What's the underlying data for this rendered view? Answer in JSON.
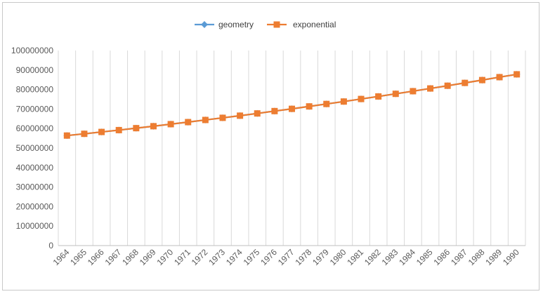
{
  "chart_data": {
    "type": "line",
    "title": "",
    "xlabel": "",
    "ylabel": "",
    "x": [
      "1964",
      "1965",
      "1966",
      "1967",
      "1968",
      "1969",
      "1970",
      "1971",
      "1972",
      "1973",
      "1974",
      "1975",
      "1976",
      "1977",
      "1978",
      "1979",
      "1980",
      "1981",
      "1982",
      "1983",
      "1984",
      "1985",
      "1986",
      "1987",
      "1988",
      "1989",
      "1990"
    ],
    "yticks": [
      "0",
      "10000000",
      "20000000",
      "30000000",
      "40000000",
      "50000000",
      "60000000",
      "70000000",
      "80000000",
      "90000000",
      "100000000"
    ],
    "ylim": [
      0,
      100000000
    ],
    "grid": "vertical",
    "legend_position": "top",
    "series": [
      {
        "name": "geometry",
        "color": "#5b9bd5",
        "marker": "diamond",
        "values": [
          56400000,
          57300000,
          58250000,
          59200000,
          60200000,
          61200000,
          62250000,
          63300000,
          64400000,
          65500000,
          66600000,
          67750000,
          68950000,
          70100000,
          71350000,
          72600000,
          73850000,
          75150000,
          76450000,
          77800000,
          79150000,
          80550000,
          81950000,
          83400000,
          84850000,
          86350000,
          87800000
        ]
      },
      {
        "name": "exponential",
        "color": "#ed7d31",
        "marker": "square",
        "values": [
          56400000,
          57300000,
          58250000,
          59200000,
          60200000,
          61200000,
          62250000,
          63300000,
          64400000,
          65500000,
          66600000,
          67750000,
          68950000,
          70100000,
          71350000,
          72600000,
          73850000,
          75150000,
          76450000,
          77800000,
          79150000,
          80550000,
          81950000,
          83400000,
          84850000,
          86350000,
          87800000
        ]
      }
    ]
  }
}
